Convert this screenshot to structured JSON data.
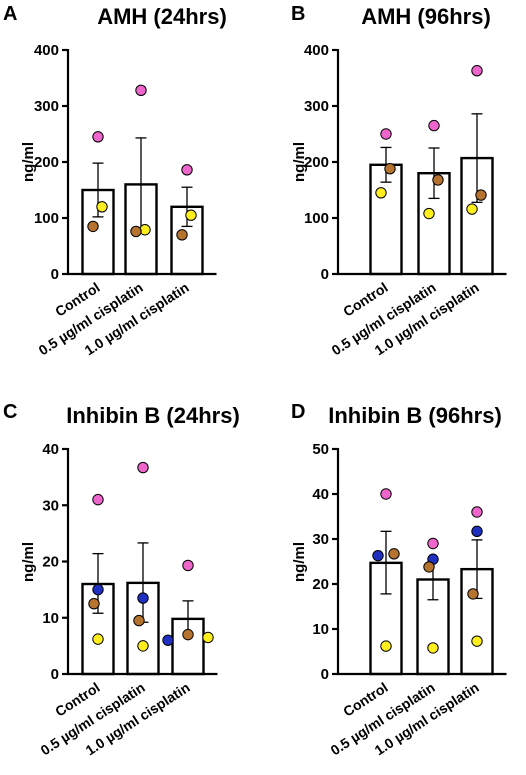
{
  "point_colors": {
    "pink": "#ee66cc",
    "brown": "#b5732f",
    "yellow": "#ffef1f",
    "blue": "#1f2fc0"
  },
  "chart_data": [
    {
      "type": "bar",
      "letter": "A",
      "title": "AMH (24hrs)",
      "ylabel": "ng/ml",
      "ylim": [
        0,
        400
      ],
      "yticks": [
        0,
        100,
        200,
        300,
        400
      ],
      "categories": [
        "Control",
        "0.5 µg/ml cisplatin",
        "1.0 µg/ml cisplatin"
      ],
      "means": [
        150,
        160,
        120
      ],
      "err_upper": [
        198,
        243,
        155
      ],
      "err_lower": [
        102,
        77,
        85
      ],
      "points": [
        [
          {
            "v": 245,
            "c": "pink"
          },
          {
            "v": 120,
            "c": "yellow"
          },
          {
            "v": 85,
            "c": "brown"
          }
        ],
        [
          {
            "v": 328,
            "c": "pink"
          },
          {
            "v": 79,
            "c": "yellow"
          },
          {
            "v": 76,
            "c": "brown"
          }
        ],
        [
          {
            "v": 186,
            "c": "pink"
          },
          {
            "v": 105,
            "c": "yellow"
          },
          {
            "v": 70,
            "c": "brown"
          }
        ]
      ]
    },
    {
      "type": "bar",
      "letter": "B",
      "title": "AMH (96hrs)",
      "ylabel": "ng/ml",
      "ylim": [
        0,
        400
      ],
      "yticks": [
        0,
        100,
        200,
        300,
        400
      ],
      "categories": [
        "Control",
        "0.5 µg/ml cisplatin",
        "1.0 µg/ml cisplatin"
      ],
      "means": [
        195,
        180,
        207
      ],
      "err_upper": [
        226,
        225,
        286
      ],
      "err_lower": [
        164,
        135,
        128
      ],
      "points": [
        [
          {
            "v": 250,
            "c": "pink"
          },
          {
            "v": 188,
            "c": "brown"
          },
          {
            "v": 145,
            "c": "yellow"
          }
        ],
        [
          {
            "v": 265,
            "c": "pink"
          },
          {
            "v": 168,
            "c": "brown"
          },
          {
            "v": 108,
            "c": "yellow"
          }
        ],
        [
          {
            "v": 363,
            "c": "pink"
          },
          {
            "v": 141,
            "c": "brown"
          },
          {
            "v": 116,
            "c": "yellow"
          }
        ]
      ]
    },
    {
      "type": "bar",
      "letter": "C",
      "title": "Inhibin B (24hrs)",
      "ylabel": "ng/ml",
      "ylim": [
        0,
        40
      ],
      "yticks": [
        0,
        10,
        20,
        30,
        40
      ],
      "categories": [
        "Control",
        "0.5 µg/ml cisplatin",
        "1.0 µg/ml cisplatin"
      ],
      "means": [
        16,
        16.2,
        9.8
      ],
      "err_upper": [
        21.4,
        23.3,
        13
      ],
      "err_lower": [
        10.8,
        9.2,
        6.8
      ],
      "points": [
        [
          {
            "v": 31,
            "c": "pink"
          },
          {
            "v": 15,
            "c": "blue"
          },
          {
            "v": 12.5,
            "c": "brown"
          },
          {
            "v": 6.2,
            "c": "yellow"
          }
        ],
        [
          {
            "v": 36.7,
            "c": "pink"
          },
          {
            "v": 13.5,
            "c": "blue"
          },
          {
            "v": 9.5,
            "c": "brown"
          },
          {
            "v": 5,
            "c": "yellow"
          }
        ],
        [
          {
            "v": 19.3,
            "c": "pink"
          },
          {
            "v": 7,
            "c": "brown"
          },
          {
            "v": 6.5,
            "c": "yellow",
            "dx": 20
          },
          {
            "v": 6,
            "c": "blue",
            "dx": -20
          }
        ]
      ]
    },
    {
      "type": "bar",
      "letter": "D",
      "title": "Inhibin B (96hrs)",
      "ylabel": "ng/ml",
      "ylim": [
        0,
        50
      ],
      "yticks": [
        0,
        10,
        20,
        30,
        40,
        50
      ],
      "categories": [
        "Control",
        "0.5 µg/ml cisplatin",
        "1.0 µg/ml cisplatin"
      ],
      "means": [
        24.7,
        21,
        23.3
      ],
      "err_upper": [
        31.7,
        25.5,
        29.8
      ],
      "err_lower": [
        17.8,
        16.5,
        16.8
      ],
      "points": [
        [
          {
            "v": 40,
            "c": "pink"
          },
          {
            "v": 26.3,
            "c": "blue",
            "dx": -8
          },
          {
            "v": 26.7,
            "c": "brown",
            "dx": 8
          },
          {
            "v": 6.2,
            "c": "yellow"
          }
        ],
        [
          {
            "v": 29,
            "c": "pink"
          },
          {
            "v": 25.5,
            "c": "blue"
          },
          {
            "v": 23.8,
            "c": "brown"
          },
          {
            "v": 5.8,
            "c": "yellow"
          }
        ],
        [
          {
            "v": 36,
            "c": "pink"
          },
          {
            "v": 31.7,
            "c": "blue"
          },
          {
            "v": 17.8,
            "c": "brown"
          },
          {
            "v": 7.3,
            "c": "yellow"
          }
        ]
      ]
    }
  ]
}
